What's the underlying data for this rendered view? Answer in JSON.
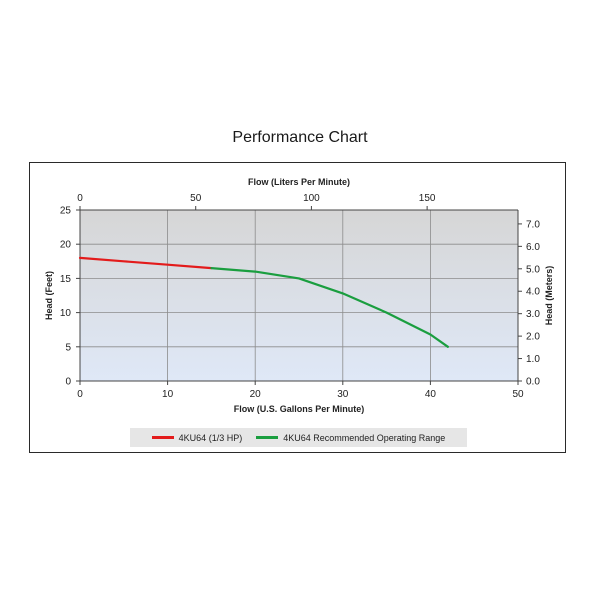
{
  "page": {
    "title": "Performance Chart"
  },
  "chart_data": {
    "type": "line",
    "x_bottom": {
      "label": "Flow (U.S. Gallons Per Minute)",
      "range": [
        0,
        50
      ],
      "ticks": [
        0,
        10,
        20,
        30,
        40,
        50
      ]
    },
    "x_top": {
      "label": "Flow (Liters Per Minute)",
      "range": [
        0,
        189.27
      ],
      "ticks": [
        0,
        50,
        100,
        150
      ]
    },
    "y_left": {
      "label": "Head (Feet)",
      "range": [
        0,
        25
      ],
      "ticks": [
        0,
        5,
        10,
        15,
        20,
        25
      ]
    },
    "y_right": {
      "label": "Head (Meters)",
      "range": [
        0,
        7.62
      ],
      "ticks": [
        "0.0",
        "1.0",
        "2.0",
        "3.0",
        "4.0",
        "5.0",
        "6.0",
        "7.0"
      ]
    },
    "grid": "vertical-and-horizontal",
    "legend_position": "bottom",
    "series": [
      {
        "name": "4KU64 (1/3 HP)",
        "color": "#e31b1b",
        "x": [
          0,
          5,
          10,
          15
        ],
        "y": [
          18,
          17.5,
          17,
          16.5
        ]
      },
      {
        "name": "4KU64 Recommended Operating Range",
        "color": "#1a9e3f",
        "x": [
          15,
          20,
          25,
          30,
          35,
          40,
          42
        ],
        "y": [
          16.5,
          16,
          15,
          12.8,
          10,
          6.8,
          5
        ]
      }
    ]
  },
  "colors": {
    "plot_top": "#d6d6d6",
    "plot_bottom": "#dfe8f7",
    "grid": "#8c8c8c"
  }
}
